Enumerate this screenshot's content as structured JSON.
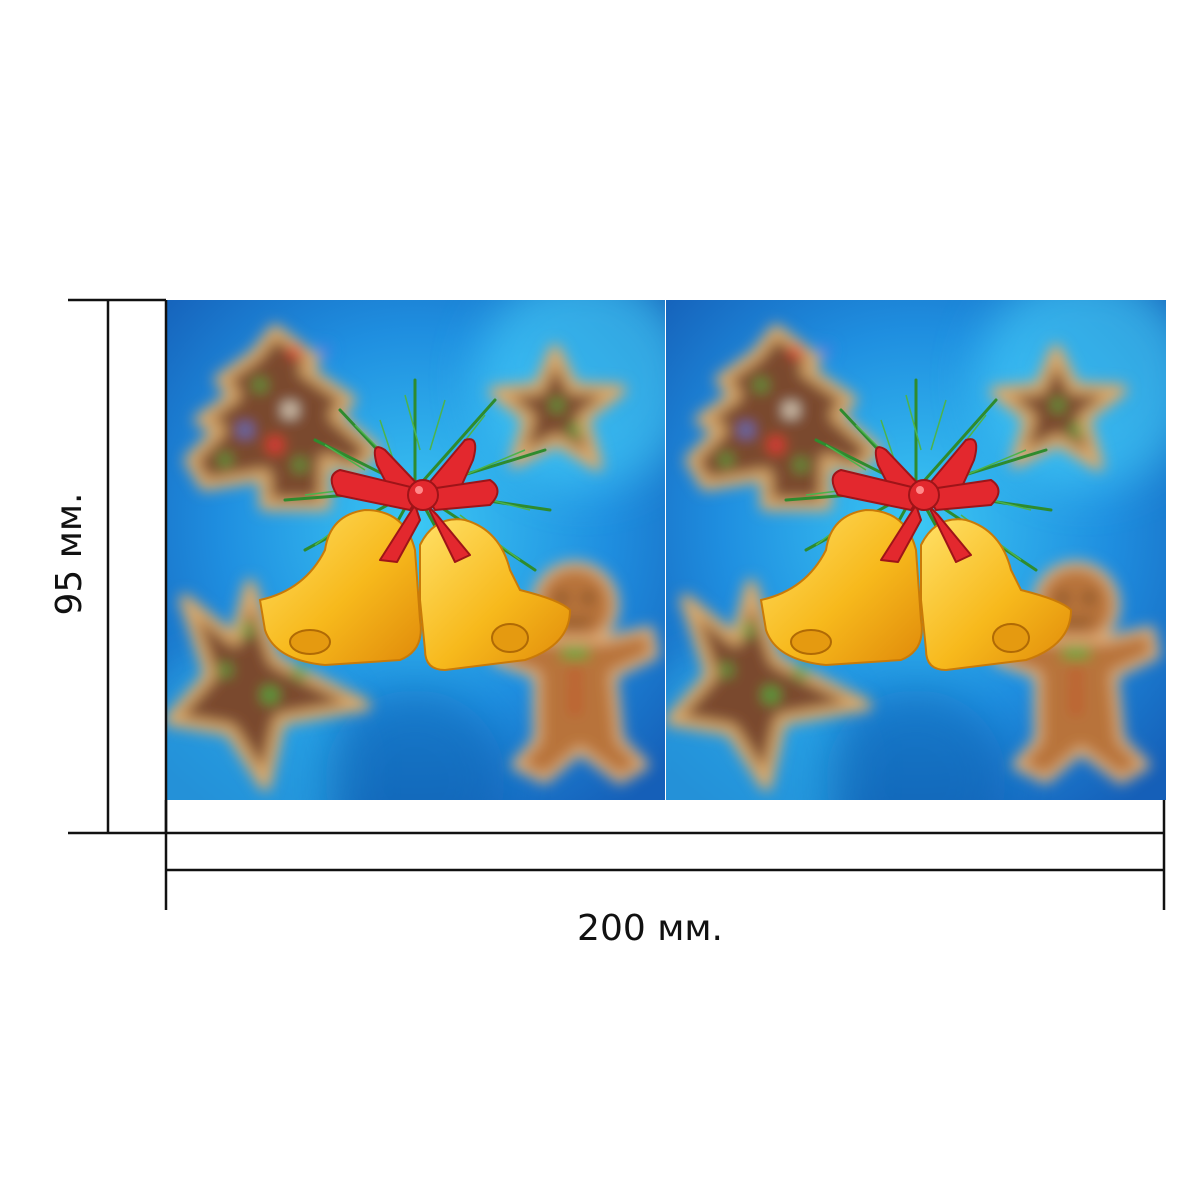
{
  "dimensions": {
    "width_label": "200 мм.",
    "height_label": "95 мм."
  },
  "artwork": {
    "panels": 2,
    "motif": [
      "gingerbread-tree-cookie",
      "star-cookie",
      "star-cookie",
      "gingerbread-man-cookie",
      "golden-bells-with-red-bow-and-pine"
    ],
    "colors": {
      "background_blue": "#1e8fe0",
      "background_light": "#38c9f5",
      "cookie_brown": "#7a4a2e",
      "cookie_rim": "#d9a86a",
      "bell_gold": "#f7b91c",
      "bow_red": "#e3282e",
      "pine_green": "#2e8b2e"
    }
  }
}
